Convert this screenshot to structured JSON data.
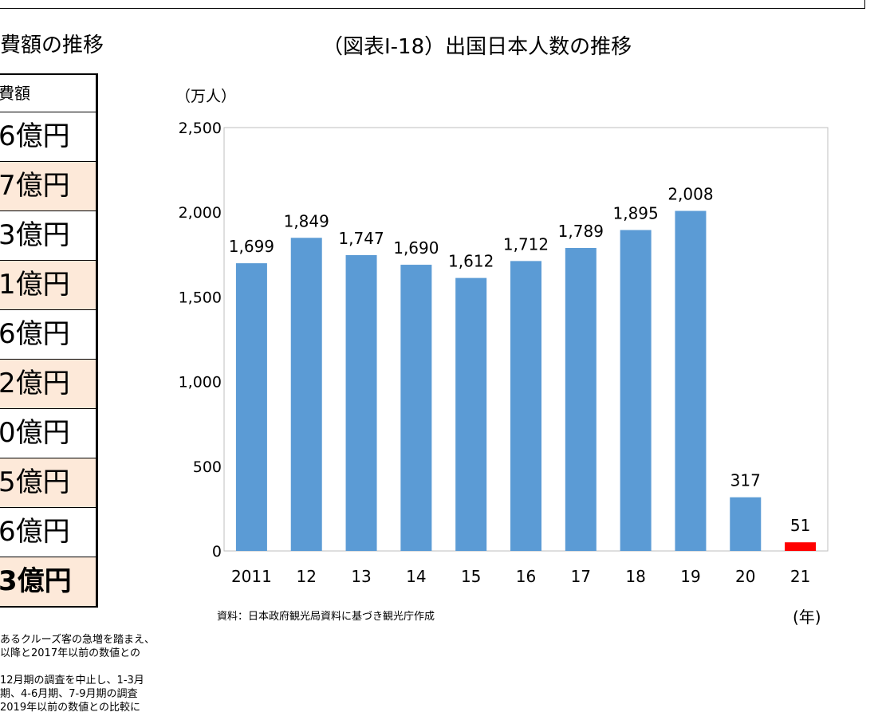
{
  "left_panel": {
    "title": "消費額の推移",
    "header": "消費額",
    "rows": [
      "6億円",
      "7億円",
      "3億円",
      "1億円",
      "6億円",
      "2億円",
      "0億円",
      "5億円",
      "6億円",
      "3億円"
    ],
    "notes": [
      "あるクルーズ客の急増を踏まえ、",
      "以降と2017年以前の数値との",
      "",
      "12月期の調査を中止し、1-3月",
      "期、4-6月期、7-9月期の調査",
      "2019年以前の数値との比較に"
    ]
  },
  "chart_data": {
    "type": "bar",
    "title": "（図表Ⅰ-18）出国日本人数の推移",
    "ylabel": "（万人）",
    "xlabel": "(年)",
    "source": "資料：日本政府観光局資料に基づき観光庁作成",
    "categories": [
      "2011",
      "12",
      "13",
      "14",
      "15",
      "16",
      "17",
      "18",
      "19",
      "20",
      "21"
    ],
    "values": [
      1699,
      1849,
      1747,
      1690,
      1612,
      1712,
      1789,
      1895,
      2008,
      317,
      51
    ],
    "data_labels": [
      "1,699",
      "1,849",
      "1,747",
      "1,690",
      "1,612",
      "1,712",
      "1,789",
      "1,895",
      "2,008",
      "317",
      "51"
    ],
    "ylim": [
      0,
      2500
    ],
    "yticks": [
      "0",
      "500",
      "1,000",
      "1,500",
      "2,000",
      "2,500"
    ],
    "grid": false,
    "colors": {
      "bar": "#5b9bd5",
      "highlight": "#ff0000"
    },
    "highlight_index": 10
  }
}
